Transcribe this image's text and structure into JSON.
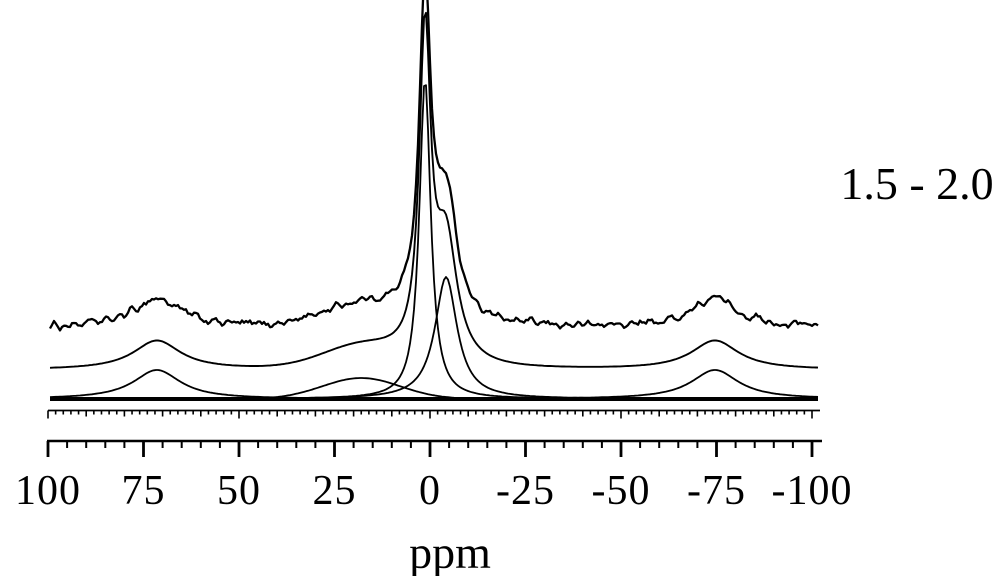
{
  "figure": {
    "xaxis_label": "ppm",
    "annotation": "1.5 - 2.0"
  },
  "chart_data": {
    "type": "line",
    "title": "",
    "xlabel": "ppm",
    "x_ticks": [
      100,
      75,
      50,
      25,
      0,
      -25,
      -50,
      -75,
      -100
    ],
    "x_range": [
      100,
      -100
    ],
    "x_minor_tick_step_ppm": 5,
    "comb_tick_step_ppm": 2,
    "grid": "off",
    "legend": "none",
    "annotation": {
      "text": "1.5 - 2.0",
      "position": "right-middle"
    },
    "colors": {
      "line": "#000000",
      "background": "#ffffff"
    },
    "series": [
      {
        "name": "experimental-spectrum",
        "style": "noisy",
        "baseline_offset": 71,
        "noise_amplitude": 4
      },
      {
        "name": "total-fit",
        "style": "smooth",
        "baseline_offset": 29
      },
      {
        "name": "fit-components",
        "style": "smooth",
        "baseline_offset": 0
      }
    ],
    "peaks": [
      {
        "name": "spinning-sideband-left",
        "shape": "lorentzian",
        "center_ppm": 71.5,
        "hwhm_ppm": 7.5,
        "amplitude": 29
      },
      {
        "name": "broad-component",
        "shape": "gaussian",
        "center_ppm": 18.0,
        "hwhm_ppm": 12.0,
        "amplitude": 21
      },
      {
        "name": "narrow-component",
        "shape": "lorentzian",
        "center_ppm": 1.3,
        "hwhm_ppm": 1.8,
        "amplitude": 320
      },
      {
        "name": "mid-component",
        "shape": "lorentzian",
        "center_ppm": -4.2,
        "hwhm_ppm": 3.5,
        "amplitude": 122
      },
      {
        "name": "spinning-sideband-right",
        "shape": "lorentzian",
        "center_ppm": -74.6,
        "hwhm_ppm": 7.5,
        "amplitude": 29
      }
    ]
  }
}
